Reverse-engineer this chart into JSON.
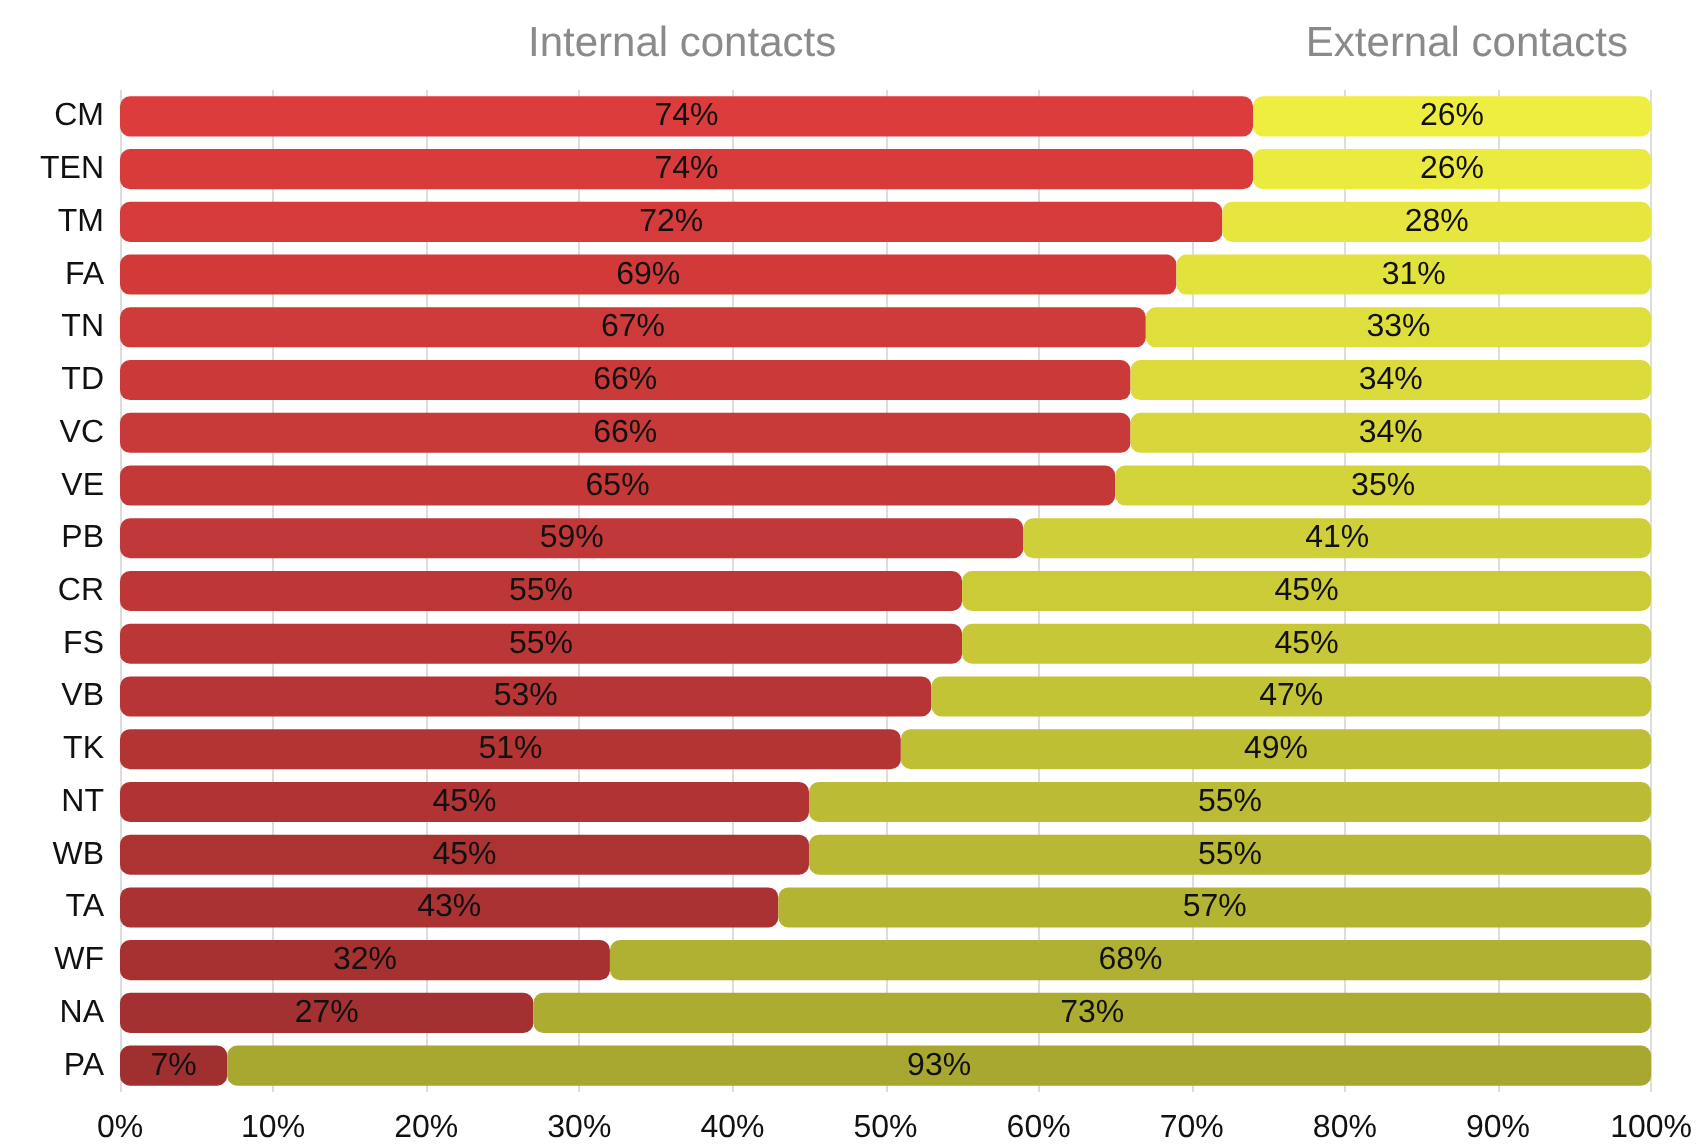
{
  "chart_data": {
    "type": "bar",
    "orientation": "horizontal",
    "stacked": true,
    "categories": [
      "CM",
      "TEN",
      "TM",
      "FA",
      "TN",
      "TD",
      "VC",
      "VE",
      "PB",
      "CR",
      "FS",
      "VB",
      "TK",
      "NT",
      "WB",
      "TA",
      "WF",
      "NA",
      "PA"
    ],
    "series": [
      {
        "name": "Internal contacts",
        "values": [
          74,
          74,
          72,
          69,
          67,
          66,
          66,
          65,
          59,
          55,
          55,
          53,
          51,
          45,
          45,
          43,
          32,
          27,
          7
        ],
        "colors": [
          "#dc3c3c",
          "#d93b3b",
          "#d53b3b",
          "#d23a3a",
          "#cf3a3a",
          "#cb3939",
          "#c83939",
          "#c53838",
          "#c13838",
          "#be3737",
          "#bb3636",
          "#b73535",
          "#b43434",
          "#b13333",
          "#ad3333",
          "#aa3232",
          "#a73131",
          "#a33131",
          "#a03030"
        ],
        "value_labels": [
          "74%",
          "74%",
          "72%",
          "69%",
          "67%",
          "66%",
          "66%",
          "65%",
          "59%",
          "55%",
          "55%",
          "53%",
          "51%",
          "45%",
          "45%",
          "43%",
          "32%",
          "27%",
          "7%"
        ]
      },
      {
        "name": "External contacts",
        "values": [
          26,
          26,
          28,
          31,
          33,
          34,
          34,
          35,
          41,
          45,
          45,
          47,
          49,
          55,
          55,
          57,
          68,
          73,
          93
        ],
        "colors": [
          "#eeee40",
          "#eaea3f",
          "#e6e63e",
          "#e2e23d",
          "#dede3c",
          "#dbdb3c",
          "#d7d73b",
          "#d3d33a",
          "#cfcf39",
          "#cbcb38",
          "#c7c737",
          "#c3c336",
          "#bfbf36",
          "#bbbb35",
          "#b8b834",
          "#b4b433",
          "#b0b032",
          "#acac31",
          "#a8a830"
        ],
        "value_labels": [
          "26%",
          "26%",
          "28%",
          "31%",
          "33%",
          "34%",
          "34%",
          "35%",
          "41%",
          "45%",
          "45%",
          "47%",
          "49%",
          "55%",
          "55%",
          "57%",
          "68%",
          "73%",
          "93%"
        ]
      }
    ],
    "xlim": [
      0,
      100
    ],
    "xticks": [
      {
        "value": 0,
        "label": "0%"
      },
      {
        "value": 10,
        "label": "10%"
      },
      {
        "value": 20,
        "label": "20%"
      },
      {
        "value": 30,
        "label": "30%"
      },
      {
        "value": 40,
        "label": "40%"
      },
      {
        "value": 50,
        "label": "50%"
      },
      {
        "value": 60,
        "label": "60%"
      },
      {
        "value": 70,
        "label": "70%"
      },
      {
        "value": 80,
        "label": "80%"
      },
      {
        "value": 90,
        "label": "90%"
      },
      {
        "value": 100,
        "label": "100%"
      }
    ],
    "grid": "x",
    "legend": "top"
  }
}
